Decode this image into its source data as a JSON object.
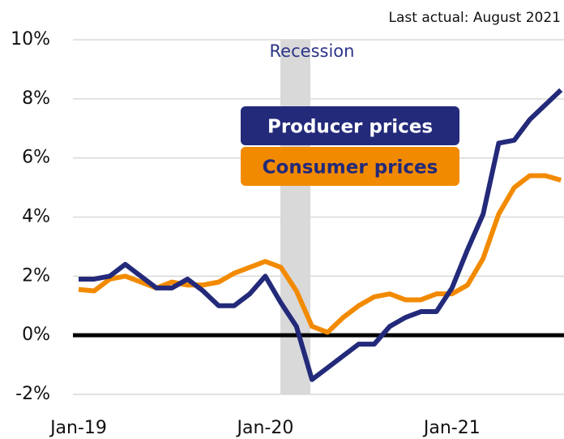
{
  "chart_data": {
    "type": "line",
    "note": "Last actual: August 2021",
    "annotation": "Recession",
    "categories": [
      "Jan-19",
      null,
      null,
      null,
      null,
      null,
      null,
      null,
      null,
      null,
      null,
      null,
      "Jan-20",
      null,
      null,
      null,
      null,
      null,
      null,
      null,
      null,
      null,
      null,
      null,
      "Jan-21",
      null,
      null,
      null,
      null,
      null,
      null,
      null
    ],
    "series": [
      {
        "name": "Producer prices",
        "color": "#232a7a",
        "values": [
          1.9,
          1.9,
          2.0,
          2.4,
          2.0,
          1.6,
          1.6,
          1.9,
          1.5,
          1.0,
          1.0,
          1.4,
          2.0,
          1.1,
          0.3,
          -1.5,
          -1.1,
          -0.7,
          -0.3,
          -0.3,
          0.3,
          0.6,
          0.8,
          0.8,
          1.6,
          2.9,
          4.1,
          6.5,
          6.6,
          7.3,
          7.8,
          8.3
        ]
      },
      {
        "name": "Consumer prices",
        "color": "#f28a00",
        "values": [
          1.55,
          1.5,
          1.9,
          2.0,
          1.8,
          1.6,
          1.8,
          1.7,
          1.7,
          1.8,
          2.1,
          2.3,
          2.5,
          2.3,
          1.5,
          0.3,
          0.1,
          0.6,
          1.0,
          1.3,
          1.4,
          1.2,
          1.2,
          1.4,
          1.4,
          1.7,
          2.6,
          4.1,
          5.0,
          5.4,
          5.4,
          5.25
        ]
      }
    ],
    "ylim": [
      -2,
      10
    ],
    "yticks": [
      {
        "value": -2,
        "label": "-2%"
      },
      {
        "value": 0,
        "label": "0%"
      },
      {
        "value": 2,
        "label": "2%"
      },
      {
        "value": 4,
        "label": "4%"
      },
      {
        "value": 6,
        "label": "6%"
      },
      {
        "value": 8,
        "label": "8%"
      },
      {
        "value": 10,
        "label": "10%"
      }
    ],
    "grid": true
  }
}
